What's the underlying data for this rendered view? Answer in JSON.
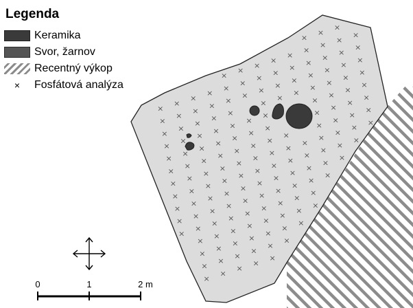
{
  "legend": {
    "title": "Legenda",
    "items": [
      {
        "key": "ceramic",
        "label": "Keramika",
        "icon": "dark-fill-swatch",
        "color": "#3a3a3a"
      },
      {
        "key": "stone",
        "label": "Svor, žarnov",
        "icon": "dark-fill-swatch",
        "color": "#555555"
      },
      {
        "key": "excavation",
        "label": "Recentný výkop",
        "icon": "diagonal-hatch-swatch",
        "color": "#8c8c8c"
      },
      {
        "key": "phosphate",
        "label": "Fosfátová analýza",
        "icon": "x-marker",
        "marker": "×"
      }
    ]
  },
  "scale_bar": {
    "labels": [
      "0",
      "1",
      "2 m"
    ]
  },
  "north_arrow": {
    "icon": "four-way-arrow-icon"
  },
  "colors": {
    "area_fill": "#dcdcdc",
    "area_stroke": "#222222",
    "hatch_stroke": "#8c8c8c",
    "feature_fill": "#3a3a3a",
    "marker_color": "#555555"
  }
}
